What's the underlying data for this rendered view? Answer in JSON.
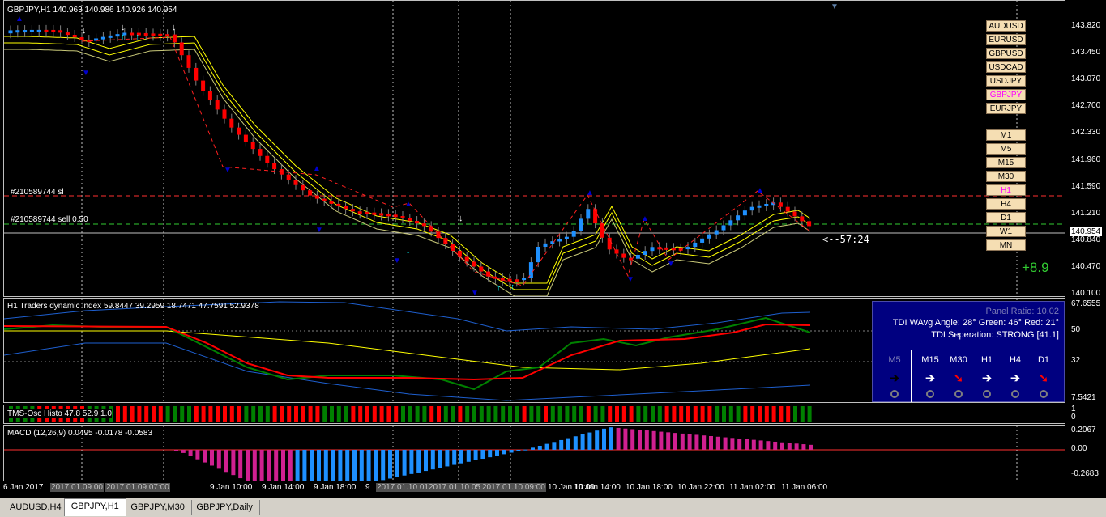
{
  "main": {
    "title": "GBPJPY,H1  140.963 140.986 140.926 140.954",
    "sl_label": "#210589744 sl",
    "order_label": "#210589744 sell 0.50",
    "countdown": "<--57:24",
    "profit": "+8.9",
    "current_price": "140.954",
    "price_ticks": [
      "143.820",
      "143.450",
      "143.070",
      "142.700",
      "142.330",
      "141.960",
      "141.590",
      "141.210",
      "140.840",
      "140.470",
      "140.100"
    ]
  },
  "symbol_buttons": [
    "AUDUSD",
    "EURUSD",
    "GBPUSD",
    "USDCAD",
    "USDJPY",
    "GBPJPY",
    "EURJPY"
  ],
  "active_symbol": "GBPJPY",
  "tf_buttons": [
    "M1",
    "M5",
    "M15",
    "M30",
    "H1",
    "H4",
    "D1",
    "W1",
    "MN"
  ],
  "active_tf": "H1",
  "tdi": {
    "title": "H1 Traders dynamic index 59.8447 39.2959 18.7471 47.7591 52.9378",
    "ticks": [
      "67.6555",
      "50",
      "32",
      "7.5421"
    ],
    "panel_ratio": "Panel Ratio: 10.02",
    "angle": "TDI WAvg Angle: 28°  Green: 46°  Red: 21°",
    "separation": "TDI Seperation: STRONG [41.1]",
    "timeframes": [
      "M5",
      "M15",
      "M30",
      "H1",
      "H4",
      "D1"
    ],
    "arrows": [
      "➔",
      "➔",
      "➘",
      "➔",
      "➔",
      "➘"
    ],
    "arrow_colors": [
      "#000000",
      "#ffffff",
      "#ff0000",
      "#ffffff",
      "#ffffff",
      "#ff0000"
    ]
  },
  "tms": {
    "title": "TMS-Osc Histo 47.8 52.9 1.0",
    "ticks": [
      "1",
      "0"
    ]
  },
  "macd": {
    "title": "MACD (12,26,9) 0.0495 -0.0178 -0.0583",
    "ticks": [
      "0.2067",
      "0.00",
      "-0.2683"
    ]
  },
  "x_labels": [
    "6 Jan 2017",
    "2017.01.09 00",
    "2017.01.09 07:00",
    "9 Jan 10:00",
    "9 Jan 14:00",
    "9 Jan 18:00",
    "9",
    "2017.01.10 01",
    "2017.01.10 05",
    "2017.01.10 09:00",
    "10 Jan 10:00",
    "10 Jan 14:00",
    "10 Jan 18:00",
    "10 Jan 22:00",
    "11 Jan 02:00",
    "11 Jan 06:00"
  ],
  "tabs": [
    "AUDUSD,H4",
    "GBPJPY,H1",
    "GBPJPY,M30",
    "GBPJPY,Daily"
  ],
  "active_tab": "GBPJPY,H1",
  "colors": {
    "bull": "#1e90ff",
    "bear": "#ff0000",
    "tdi_green": "#008000",
    "tdi_red": "#ff0000",
    "tdi_yellow": "#ffff00",
    "band": "#1e5fcf"
  }
}
